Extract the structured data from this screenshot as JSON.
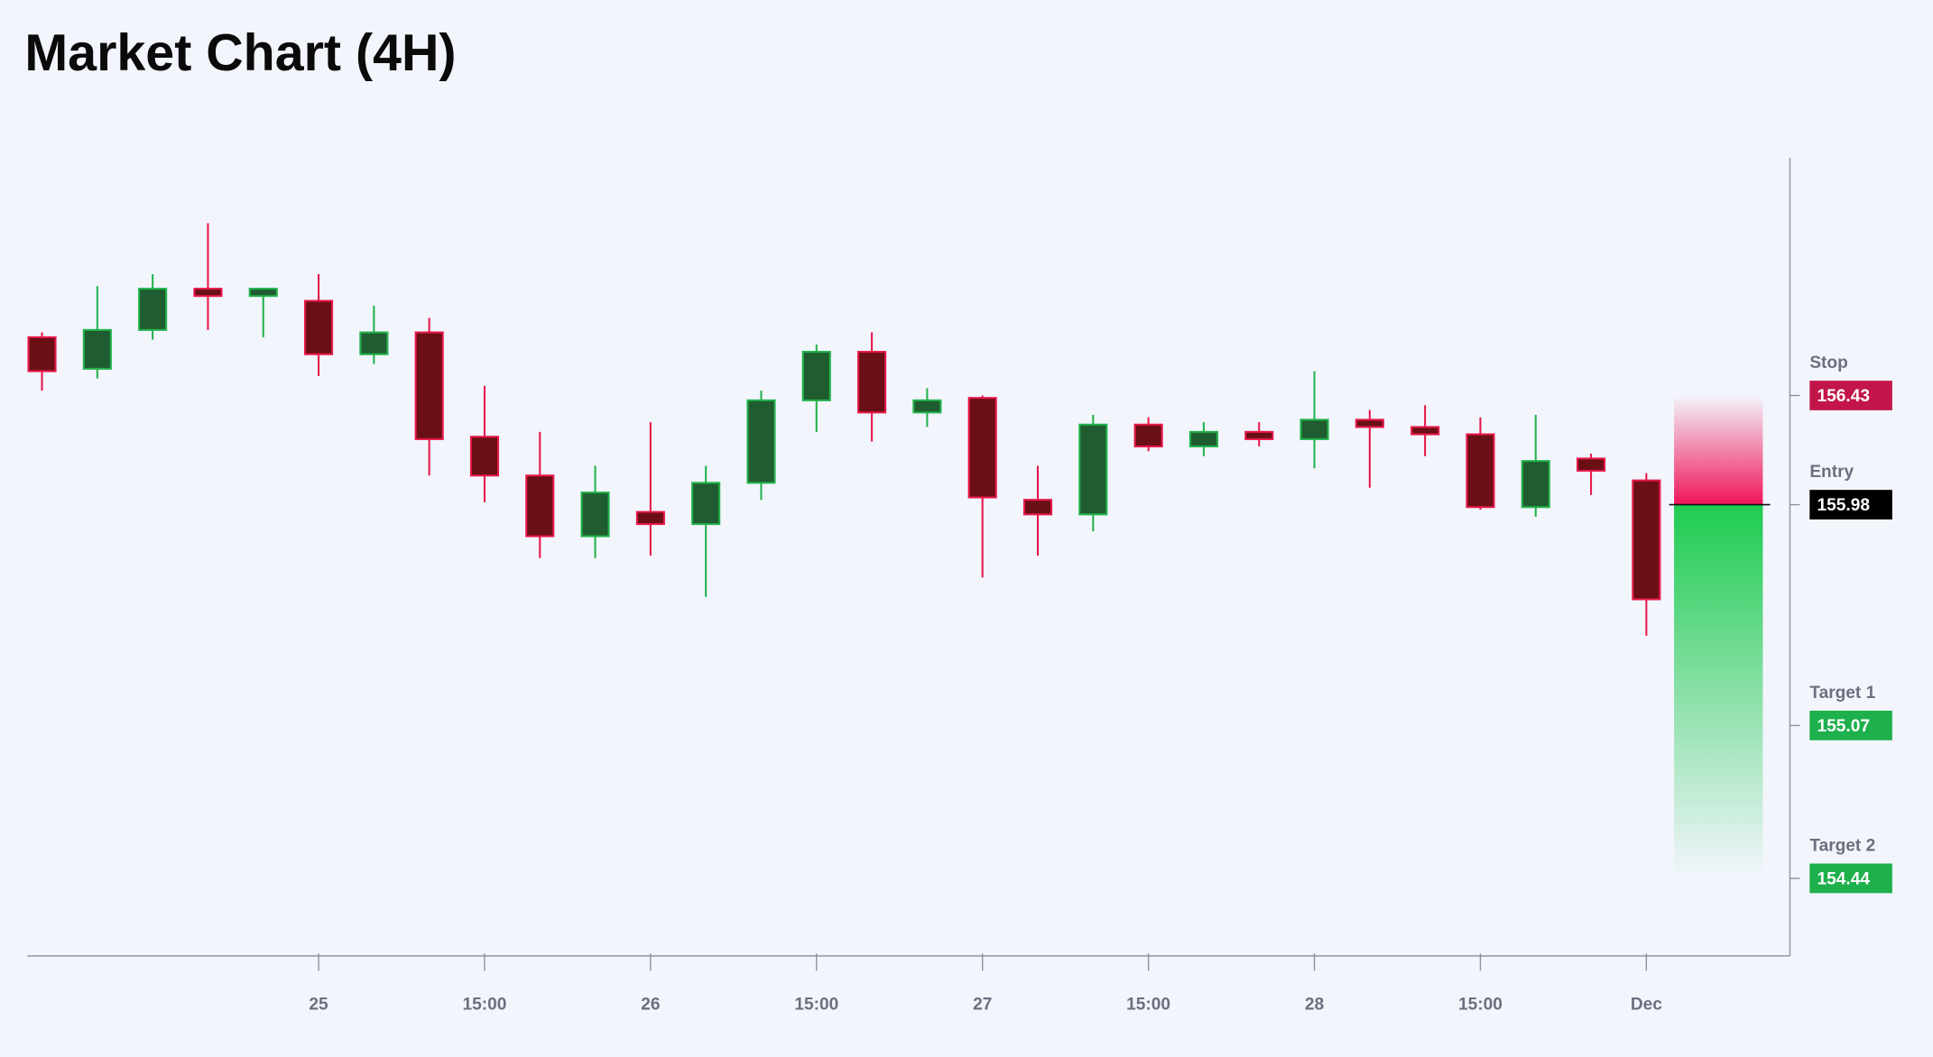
{
  "chart_data": {
    "type": "candlestick",
    "title": "Market Chart (4H)",
    "categories": [
      null,
      null,
      null,
      null,
      null,
      "25",
      null,
      null,
      "15:00",
      null,
      null,
      "26",
      null,
      null,
      "15:00",
      null,
      null,
      "27",
      null,
      null,
      "15:00",
      null,
      null,
      "28",
      null,
      null,
      "15:00",
      null,
      null,
      "Dec"
    ],
    "open": [
      156.67,
      156.54,
      156.7,
      156.87,
      156.84,
      156.82,
      156.6,
      156.69,
      156.26,
      156.1,
      155.85,
      155.95,
      155.9,
      156.07,
      156.41,
      156.61,
      156.36,
      156.42,
      156.0,
      155.94,
      156.31,
      156.22,
      156.28,
      156.25,
      156.33,
      156.3,
      156.27,
      155.97,
      156.17,
      156.08
    ],
    "high": [
      156.69,
      156.88,
      156.93,
      157.14,
      156.87,
      156.93,
      156.8,
      156.75,
      156.47,
      156.28,
      156.14,
      156.32,
      156.14,
      156.45,
      156.64,
      156.69,
      156.46,
      156.43,
      156.14,
      156.35,
      156.34,
      156.32,
      156.32,
      156.53,
      156.37,
      156.39,
      156.34,
      156.35,
      156.19,
      156.11
    ],
    "low": [
      156.45,
      156.5,
      156.66,
      156.7,
      156.67,
      156.51,
      156.56,
      156.1,
      155.99,
      155.76,
      155.76,
      155.77,
      155.6,
      156.0,
      156.28,
      156.24,
      156.3,
      155.68,
      155.77,
      155.87,
      156.2,
      156.18,
      156.22,
      156.13,
      156.05,
      156.18,
      155.96,
      155.93,
      156.02,
      155.44
    ],
    "close": [
      156.53,
      156.7,
      156.87,
      156.84,
      156.87,
      156.6,
      156.69,
      156.25,
      156.1,
      155.85,
      156.03,
      155.9,
      156.07,
      156.41,
      156.61,
      156.36,
      156.41,
      156.01,
      155.94,
      156.31,
      156.22,
      156.28,
      156.25,
      156.33,
      156.3,
      156.27,
      155.97,
      156.16,
      156.12,
      155.59
    ],
    "up_color": "#1f5c2f",
    "up_edge": "#22b24c",
    "down_color": "#6a0f16",
    "down_edge": "#e8174a",
    "ylim": [
      154.12,
      157.41
    ],
    "grid": false,
    "levels": [
      {
        "label": "Stop",
        "value": 156.43,
        "color": "#c2164a"
      },
      {
        "label": "Entry",
        "value": 155.98,
        "color": "#000000"
      },
      {
        "label": "Target 1",
        "value": 155.07,
        "color": "#1eb04c"
      },
      {
        "label": "Target 2",
        "value": 154.44,
        "color": "#1eb04c"
      }
    ]
  }
}
